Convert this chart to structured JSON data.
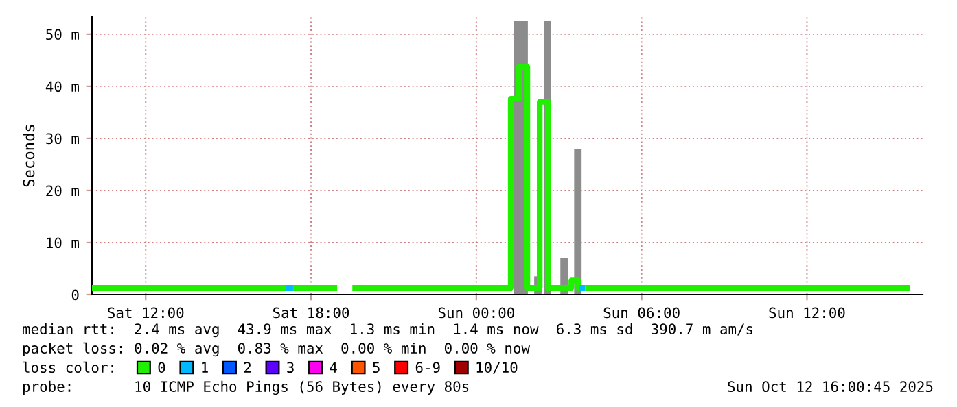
{
  "chart_data": {
    "type": "step",
    "ylabel": "Seconds",
    "xlim": [
      "2025-10-11T10:03",
      "2025-10-12T16:12"
    ],
    "ylim": [
      0,
      53.4
    ],
    "xticks": [
      {
        "value": "2025-10-11T12:00",
        "label": "Sat 12:00"
      },
      {
        "value": "2025-10-11T18:00",
        "label": "Sat 18:00"
      },
      {
        "value": "2025-10-12T00:00",
        "label": "Sun 00:00"
      },
      {
        "value": "2025-10-12T06:00",
        "label": "Sun 06:00"
      },
      {
        "value": "2025-10-12T12:00",
        "label": "Sun 12:00"
      }
    ],
    "yticks": [
      {
        "value": 0,
        "label": "0"
      },
      {
        "value": 10,
        "label": "10 m"
      },
      {
        "value": 20,
        "label": "20 m"
      },
      {
        "value": 30,
        "label": "30 m"
      },
      {
        "value": 40,
        "label": "40 m"
      },
      {
        "value": 50,
        "label": "50 m"
      }
    ],
    "grid": true,
    "legend": "bottom",
    "legend_title": "loss color:",
    "series": [
      {
        "type": "bar",
        "color": "#8c8c8c",
        "x": [
          "2025-10-12T01:21",
          "2025-10-12T01:36",
          "2025-10-12T02:06",
          "2025-10-12T02:27",
          "2025-10-12T03:03",
          "2025-10-12T03:33"
        ],
        "values": [
          52.6,
          52.6,
          3.5,
          52.6,
          7.1,
          27.9
        ]
      },
      {
        "name": "0",
        "color": "#20f000",
        "x": [
          "2025-10-11T10:03",
          "2025-10-11T17:06",
          "2025-10-11T17:21",
          "2025-10-11T18:57",
          "2025-10-11T19:30",
          "2025-10-12T01:15",
          "2025-10-12T01:33",
          "2025-10-12T01:51",
          "2025-10-12T02:18",
          "2025-10-12T02:36",
          "2025-10-12T03:27",
          "2025-10-12T03:42",
          "2025-10-12T03:45",
          "2025-10-12T03:57",
          "2025-10-12T15:45"
        ],
        "values": [
          1.3,
          null,
          1.3,
          null,
          1.3,
          37.6,
          43.7,
          1.3,
          37.0,
          1.3,
          2.7,
          1.3,
          null,
          1.3,
          1.3
        ]
      },
      {
        "name": "1",
        "color": "#00b8ff",
        "x": [
          "2025-10-11T17:06",
          "2025-10-11T17:21",
          "2025-10-12T03:45",
          "2025-10-12T03:57"
        ],
        "values": [
          1.3,
          null,
          1.3,
          1.3
        ]
      },
      {
        "name": "2",
        "color": "#0059ff"
      },
      {
        "name": "3",
        "color": "#5e00ff"
      },
      {
        "name": "4",
        "color": "#ff00f0"
      },
      {
        "name": "5",
        "color": "#ff5500"
      },
      {
        "name": "6-9",
        "color": "#ff0000"
      },
      {
        "name": "10/10",
        "color": "#a10000"
      }
    ],
    "annotations": [
      "median rtt:  2.4 ms avg  43.9 ms max  1.3 ms min  1.4 ms now  6.3 ms sd  390.7 m am/s",
      "packet loss: 0.02 % avg  0.83 % max  0.00 % min  0.00 % now",
      "probe:       10 ICMP Echo Pings (56 Bytes) every 80s",
      "Sun Oct 12 16:00:45 2025"
    ]
  }
}
